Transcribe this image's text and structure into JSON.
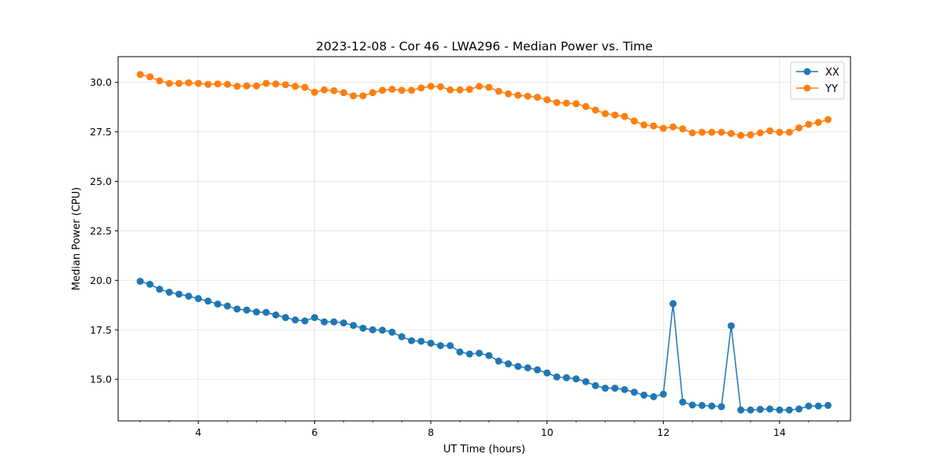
{
  "chart_data": {
    "type": "line",
    "title": "2023-12-08 - Cor 46 - LWA296 - Median Power vs. Time",
    "xlabel": "UT Time (hours)",
    "ylabel": "Median Power (CPU)",
    "xlim": [
      2.62,
      15.22
    ],
    "ylim": [
      12.9,
      31.3
    ],
    "xticks": [
      4,
      6,
      8,
      10,
      12,
      14
    ],
    "xtick_labels": [
      "4",
      "6",
      "8",
      "10",
      "12",
      "14"
    ],
    "xminor_step": 0.5,
    "yticks": [
      15.0,
      17.5,
      20.0,
      22.5,
      25.0,
      27.5,
      30.0
    ],
    "ytick_labels": [
      "15.0",
      "17.5",
      "20.0",
      "22.5",
      "25.0",
      "27.5",
      "30.0"
    ],
    "grid": true,
    "legend_position": "top-right",
    "x": [
      3.0,
      3.167,
      3.333,
      3.5,
      3.667,
      3.833,
      4.0,
      4.167,
      4.333,
      4.5,
      4.667,
      4.833,
      5.0,
      5.167,
      5.333,
      5.5,
      5.667,
      5.833,
      6.0,
      6.167,
      6.333,
      6.5,
      6.667,
      6.833,
      7.0,
      7.167,
      7.333,
      7.5,
      7.667,
      7.833,
      8.0,
      8.167,
      8.333,
      8.5,
      8.667,
      8.833,
      9.0,
      9.167,
      9.333,
      9.5,
      9.667,
      9.833,
      10.0,
      10.167,
      10.333,
      10.5,
      10.667,
      10.833,
      11.0,
      11.167,
      11.333,
      11.5,
      11.667,
      11.833,
      12.0,
      12.167,
      12.333,
      12.5,
      12.667,
      12.833,
      13.0,
      13.167,
      13.333,
      13.5,
      13.667,
      13.833,
      14.0,
      14.167,
      14.333,
      14.5,
      14.667,
      14.833
    ],
    "series": [
      {
        "name": "XX",
        "color": "#1f77b4",
        "values": [
          19.95,
          19.8,
          19.55,
          19.4,
          19.3,
          19.2,
          19.08,
          18.95,
          18.8,
          18.7,
          18.55,
          18.5,
          18.4,
          18.38,
          18.25,
          18.12,
          18.0,
          17.95,
          18.12,
          17.9,
          17.9,
          17.85,
          17.72,
          17.58,
          17.5,
          17.48,
          17.38,
          17.15,
          16.95,
          16.92,
          16.82,
          16.7,
          16.7,
          16.38,
          16.28,
          16.32,
          16.2,
          15.92,
          15.78,
          15.65,
          15.58,
          15.48,
          15.32,
          15.12,
          15.08,
          15.02,
          14.88,
          14.68,
          14.55,
          14.55,
          14.48,
          14.35,
          14.2,
          14.12,
          14.25,
          18.82,
          13.85,
          13.7,
          13.68,
          13.65,
          13.62,
          17.7,
          13.45,
          13.45,
          13.48,
          13.5,
          13.45,
          13.45,
          13.5,
          13.65,
          13.65,
          13.68
        ]
      },
      {
        "name": "YY",
        "color": "#ff7f0e",
        "values": [
          30.4,
          30.28,
          30.08,
          29.95,
          29.95,
          29.98,
          29.95,
          29.9,
          29.92,
          29.9,
          29.8,
          29.82,
          29.82,
          29.95,
          29.92,
          29.88,
          29.8,
          29.75,
          29.5,
          29.62,
          29.58,
          29.48,
          29.32,
          29.32,
          29.48,
          29.6,
          29.65,
          29.6,
          29.6,
          29.72,
          29.8,
          29.78,
          29.62,
          29.62,
          29.65,
          29.8,
          29.75,
          29.55,
          29.42,
          29.35,
          29.3,
          29.25,
          29.12,
          28.98,
          28.95,
          28.92,
          28.78,
          28.6,
          28.42,
          28.35,
          28.28,
          28.05,
          27.85,
          27.8,
          27.68,
          27.75,
          27.65,
          27.45,
          27.48,
          27.48,
          27.48,
          27.42,
          27.32,
          27.35,
          27.45,
          27.55,
          27.48,
          27.48,
          27.7,
          27.88,
          27.98,
          28.12
        ]
      }
    ]
  }
}
